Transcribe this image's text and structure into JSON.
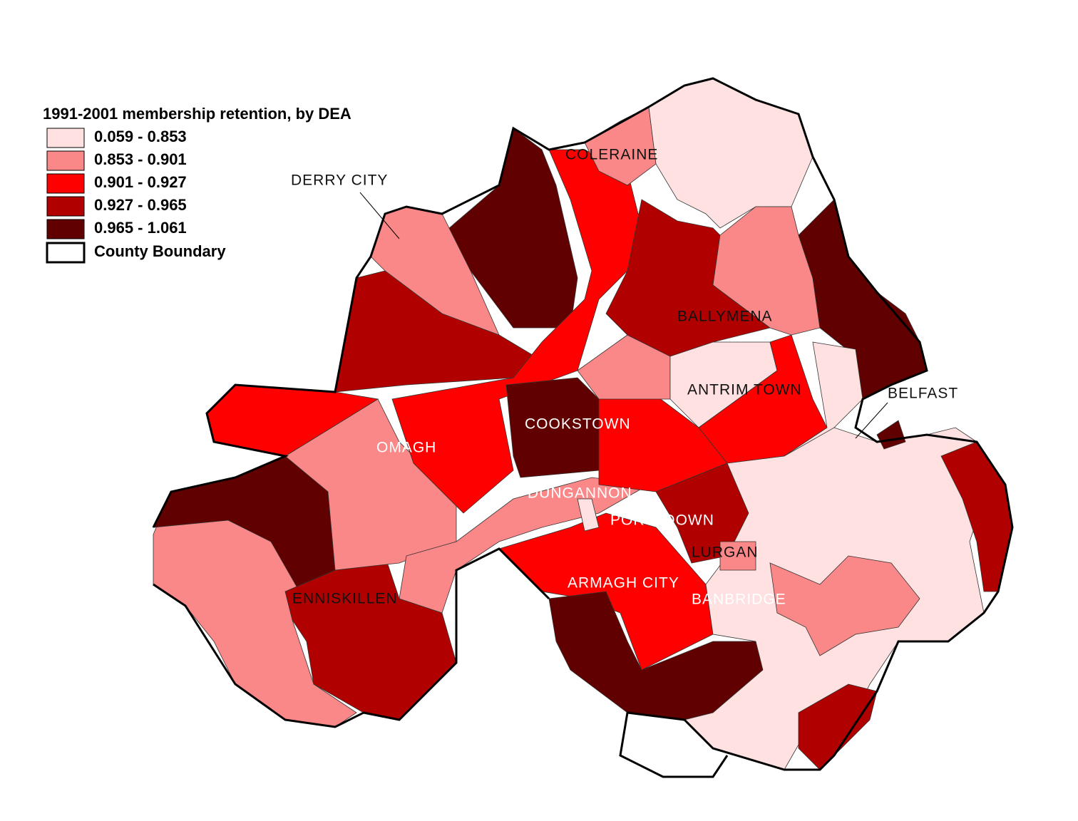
{
  "legend": {
    "title": "1991-2001 membership retention, by DEA",
    "classes": [
      {
        "label": "0.059 - 0.853",
        "color": "#ffe1e1"
      },
      {
        "label": "0.853 - 0.901",
        "color": "#fa8888"
      },
      {
        "label": "0.901 - 0.927",
        "color": "#ff0000"
      },
      {
        "label": "0.927 - 0.965",
        "color": "#b00000"
      },
      {
        "label": "0.965 - 1.061",
        "color": "#600000"
      }
    ],
    "boundary": "County Boundary"
  },
  "places": [
    "DERRY CITY",
    "COLERAINE",
    "BALLYMENA",
    "ANTRIM TOWN",
    "BELFAST",
    "COOKSTOWN",
    "OMAGH",
    "DUNGANNON",
    "PORTADOWN",
    "LURGAN",
    "ARMAGH CITY",
    "BANBRIDGE",
    "ENNISKILLEN"
  ]
}
